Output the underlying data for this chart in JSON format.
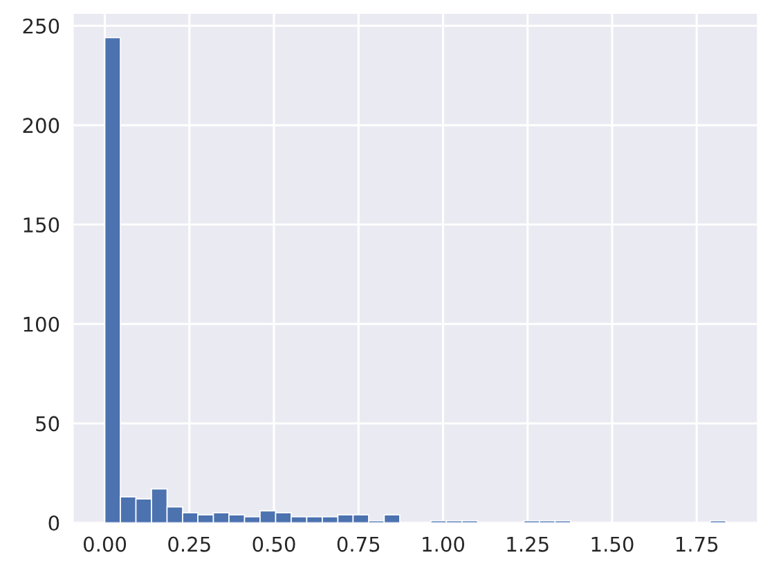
{
  "chart_data": {
    "type": "histogram",
    "bins": [
      0,
      0.046,
      0.092,
      0.138,
      0.184,
      0.23,
      0.275,
      0.321,
      0.367,
      0.413,
      0.459,
      0.505,
      0.551,
      0.597,
      0.643,
      0.689,
      0.734,
      0.78,
      0.826,
      0.872,
      0.918,
      0.964,
      1.01,
      1.056,
      1.102,
      1.148,
      1.193,
      1.239,
      1.285,
      1.331,
      1.377,
      1.423,
      1.469,
      1.515,
      1.561,
      1.607,
      1.652,
      1.698,
      1.744,
      1.79,
      1.836
    ],
    "values": [
      244,
      13,
      12,
      17,
      8,
      5,
      4,
      5,
      4,
      3,
      6,
      5,
      3,
      3,
      3,
      4,
      4,
      1,
      4,
      0,
      0,
      1,
      1,
      1,
      0,
      0,
      0,
      1,
      1,
      1,
      0,
      0,
      0,
      0,
      0,
      0,
      0,
      0,
      0,
      1
    ],
    "color": "#4c72b0",
    "xlim": [
      -0.092,
      1.928
    ],
    "ylim": [
      0,
      256
    ],
    "xticks": [
      {
        "value": 0,
        "label": "0.00"
      },
      {
        "value": 0.25,
        "label": "0.25"
      },
      {
        "value": 0.5,
        "label": "0.50"
      },
      {
        "value": 0.75,
        "label": "0.75"
      },
      {
        "value": 1.0,
        "label": "1.00"
      },
      {
        "value": 1.25,
        "label": "1.25"
      },
      {
        "value": 1.5,
        "label": "1.50"
      },
      {
        "value": 1.75,
        "label": "1.75"
      }
    ],
    "yticks": [
      0,
      50,
      100,
      150,
      200,
      250
    ],
    "grid": true
  }
}
